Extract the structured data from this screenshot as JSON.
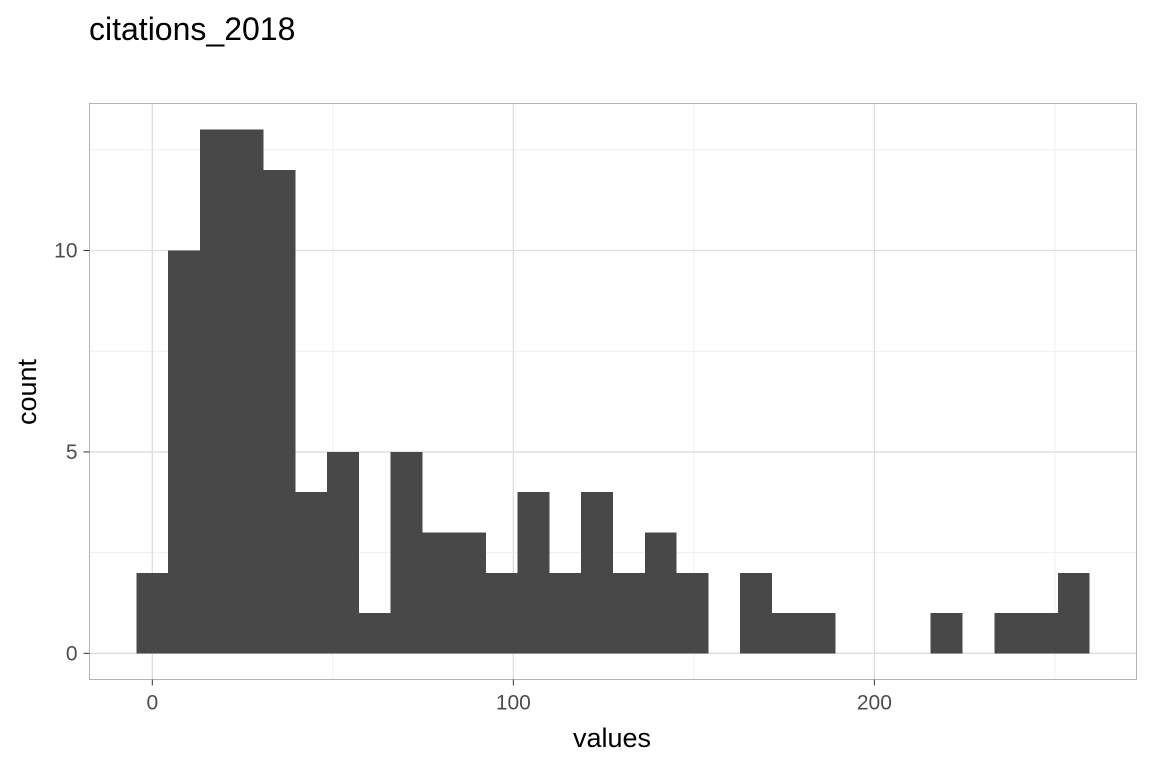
{
  "chart_data": {
    "type": "bar",
    "title": "citations_2018",
    "xlabel": "values",
    "ylabel": "count",
    "binwidth": 8.8,
    "bins": [
      {
        "start": -4.4,
        "end": 4.4,
        "count": 2
      },
      {
        "start": 4.4,
        "end": 13.2,
        "count": 10
      },
      {
        "start": 13.2,
        "end": 22.0,
        "count": 13
      },
      {
        "start": 22.0,
        "end": 30.8,
        "count": 13
      },
      {
        "start": 30.8,
        "end": 39.6,
        "count": 12
      },
      {
        "start": 39.6,
        "end": 48.4,
        "count": 4
      },
      {
        "start": 48.4,
        "end": 57.2,
        "count": 5
      },
      {
        "start": 57.2,
        "end": 66.0,
        "count": 1
      },
      {
        "start": 66.0,
        "end": 74.8,
        "count": 5
      },
      {
        "start": 74.8,
        "end": 83.6,
        "count": 3
      },
      {
        "start": 83.6,
        "end": 92.4,
        "count": 3
      },
      {
        "start": 92.4,
        "end": 101.2,
        "count": 2
      },
      {
        "start": 101.2,
        "end": 110.0,
        "count": 4
      },
      {
        "start": 110.0,
        "end": 118.8,
        "count": 2
      },
      {
        "start": 118.8,
        "end": 127.6,
        "count": 4
      },
      {
        "start": 127.6,
        "end": 136.4,
        "count": 2
      },
      {
        "start": 136.4,
        "end": 145.2,
        "count": 3
      },
      {
        "start": 145.2,
        "end": 154.0,
        "count": 2
      },
      {
        "start": 154.0,
        "end": 162.8,
        "count": 0
      },
      {
        "start": 162.8,
        "end": 171.6,
        "count": 2
      },
      {
        "start": 171.6,
        "end": 180.4,
        "count": 1
      },
      {
        "start": 180.4,
        "end": 189.2,
        "count": 1
      },
      {
        "start": 189.2,
        "end": 198.0,
        "count": 0
      },
      {
        "start": 198.0,
        "end": 206.8,
        "count": 0
      },
      {
        "start": 206.8,
        "end": 215.6,
        "count": 0
      },
      {
        "start": 215.6,
        "end": 224.4,
        "count": 1
      },
      {
        "start": 224.4,
        "end": 233.2,
        "count": 0
      },
      {
        "start": 233.2,
        "end": 242.0,
        "count": 1
      },
      {
        "start": 242.0,
        "end": 250.8,
        "count": 1
      },
      {
        "start": 250.8,
        "end": 259.6,
        "count": 2
      }
    ],
    "xlim": [
      -17.4,
      272.6
    ],
    "ylim": [
      -0.65,
      13.65
    ],
    "x_ticks": [
      0,
      100,
      200
    ],
    "x_minor_ticks": [
      50,
      150,
      250
    ],
    "y_ticks": [
      0,
      5,
      10
    ],
    "y_minor_ticks": [
      2.5,
      7.5,
      12.5
    ],
    "grid": true,
    "legend": "none",
    "bar_color": "#484848",
    "major_grid_color": "#dedede",
    "minor_grid_color": "#efefef",
    "panel_border_color": "#b3b3b3"
  }
}
